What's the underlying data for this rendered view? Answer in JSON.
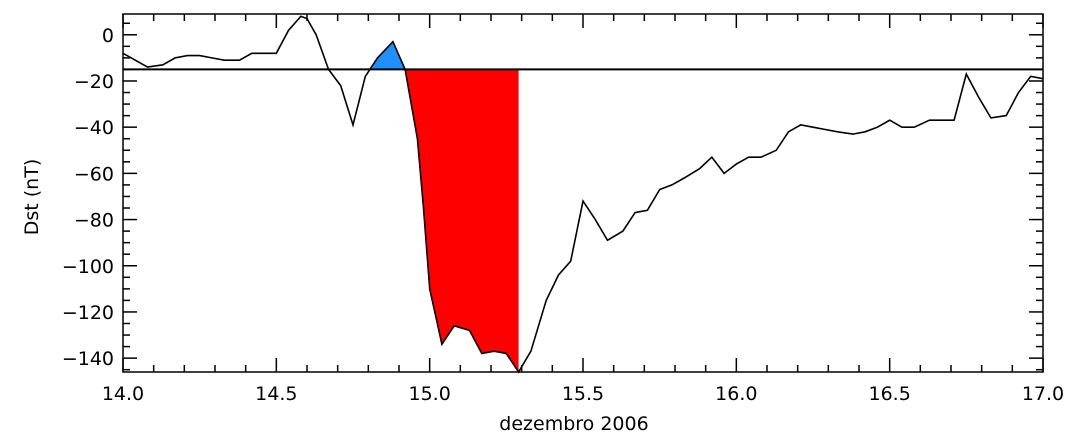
{
  "chart_data": {
    "type": "line",
    "title": "",
    "xlabel": "dezembro 2006",
    "ylabel": "Dst (nT)",
    "xlim": [
      14.0,
      17.0
    ],
    "ylim": [
      -146,
      9
    ],
    "grid": false,
    "xticks": [
      14.0,
      14.5,
      15.0,
      15.5,
      16.0,
      16.5,
      17.0
    ],
    "xtick_labels": [
      "14.0",
      "14.5",
      "15.0",
      "15.5",
      "16.0",
      "16.5",
      "17.0"
    ],
    "yticks": [
      0,
      -20,
      -40,
      -60,
      -80,
      -100,
      -120,
      -140
    ],
    "ytick_labels": [
      "0",
      "−20",
      "−40",
      "−60",
      "−80",
      "−100",
      "−120",
      "−140"
    ],
    "threshold": -15,
    "shaded_regions": [
      {
        "color": "#1e90ff",
        "from_x": 14.81,
        "to_x": 14.92,
        "relation": "above_threshold"
      },
      {
        "color": "#ff0000",
        "from_x": 14.92,
        "to_x": 15.29,
        "relation": "below_threshold"
      }
    ],
    "series": [
      {
        "color": "#000000",
        "x": [
          14.0,
          14.04,
          14.08,
          14.13,
          14.17,
          14.21,
          14.25,
          14.29,
          14.33,
          14.38,
          14.42,
          14.46,
          14.5,
          14.54,
          14.58,
          14.6,
          14.63,
          14.67,
          14.71,
          14.75,
          14.79,
          14.83,
          14.88,
          14.92,
          14.96,
          14.98,
          15.0,
          15.04,
          15.08,
          15.13,
          15.17,
          15.21,
          15.25,
          15.29,
          15.33,
          15.38,
          15.42,
          15.46,
          15.5,
          15.54,
          15.58,
          15.63,
          15.67,
          15.71,
          15.75,
          15.79,
          15.83,
          15.88,
          15.92,
          15.96,
          16.0,
          16.04,
          16.08,
          16.13,
          16.17,
          16.21,
          16.25,
          16.29,
          16.33,
          16.38,
          16.42,
          16.46,
          16.5,
          16.54,
          16.58,
          16.63,
          16.67,
          16.71,
          16.75,
          16.79,
          16.83,
          16.88,
          16.92,
          16.96,
          17.0
        ],
        "y": [
          -8,
          -11,
          -14,
          -13,
          -10,
          -9,
          -9,
          -10,
          -11,
          -11,
          -8,
          -8,
          -8,
          2,
          8,
          7,
          0,
          -15,
          -22,
          -39,
          -18,
          -10,
          -3,
          -15,
          -45,
          -75,
          -110,
          -134,
          -126,
          -128,
          -138,
          -137,
          -138,
          -146,
          -137,
          -115,
          -104,
          -98,
          -72,
          -80,
          -89,
          -85,
          -77,
          -76,
          -67,
          -65,
          -62,
          -58,
          -53,
          -60,
          -56,
          -53,
          -53,
          -50,
          -42,
          -39,
          -40,
          -41,
          -42,
          -43,
          -42,
          -40,
          -37,
          -40,
          -40,
          -37,
          -37,
          -37,
          -17,
          -27,
          -36,
          -35,
          -25,
          -18,
          -19
        ]
      }
    ]
  }
}
